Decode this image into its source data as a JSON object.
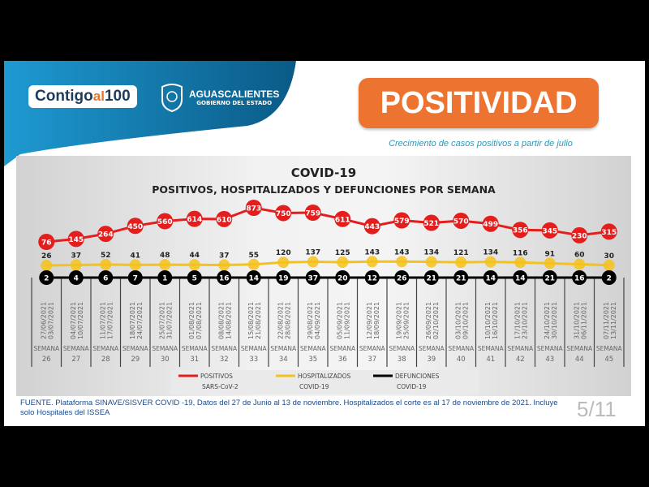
{
  "header": {
    "logo_contigo_main": "Contigo",
    "logo_contigo_al": "al",
    "logo_contigo_num": "100",
    "gov_name": "AGUASCALIENTES",
    "gov_sub": "GOBIERNO DEL ESTADO",
    "badge": "POSITIVIDAD",
    "subtitle": "Crecimiento de casos positivos a partir de julio"
  },
  "colors": {
    "banner": "#1a8cc4",
    "badge": "#ec7430",
    "positivos": "#e41d1d",
    "hospitalizados": "#f4c21c",
    "defunciones": "#000000"
  },
  "chart_data": {
    "type": "line",
    "title": "COVID-19",
    "subtitle": "POSITIVOS, HOSPITALIZADOS Y DEFUNCIONES POR SEMANA",
    "week_prefix": "SEMANA",
    "categories": [
      "26",
      "27",
      "28",
      "29",
      "30",
      "31",
      "32",
      "33",
      "34",
      "35",
      "36",
      "37",
      "38",
      "39",
      "40",
      "41",
      "42",
      "43",
      "44",
      "45"
    ],
    "date_ranges": [
      "27/06/2021 03/07/2021",
      "04/07/2021 10/07/2021",
      "11/07/2021 17/07/2021",
      "18/07/2021 24/07/2021",
      "25/07/2021 31/07/2021",
      "01/08/2021 07/08/2021",
      "08/08/2021 14/08/2021",
      "15/08/2021 21/08/2021",
      "22/08/2021 28/08/2021",
      "29/08/2021 04/09/2021",
      "05/09/2021 11/09/2021",
      "12/09/2021 18/09/2021",
      "19/09/2021 25/09/2021",
      "26/09/2021 02/10/2021",
      "03/10/2021 09/10/2021",
      "10/10/2021 16/10/2021",
      "17/10/2021 23/10/2021",
      "24/10/2021 30/10/2021",
      "31/10/2021 06/11/2021",
      "07/11/2021 13/11/2021"
    ],
    "series": [
      {
        "name": "POSITIVOS SARS-CoV-2",
        "values": [
          76,
          145,
          264,
          450,
          560,
          614,
          610,
          873,
          750,
          759,
          611,
          443,
          579,
          521,
          570,
          499,
          356,
          345,
          230,
          315
        ]
      },
      {
        "name": "HOSPITALIZADOS COVID-19",
        "values": [
          26,
          37,
          52,
          41,
          48,
          44,
          37,
          55,
          120,
          137,
          125,
          143,
          143,
          134,
          121,
          134,
          116,
          91,
          60,
          30
        ]
      },
      {
        "name": "DEFUNCIONES COVID-19",
        "values": [
          2,
          4,
          6,
          7,
          1,
          5,
          16,
          14,
          19,
          37,
          20,
          12,
          26,
          21,
          21,
          14,
          14,
          21,
          16,
          2
        ]
      }
    ],
    "legend": [
      {
        "line1": "POSITIVOS",
        "line2": "SARS-CoV-2"
      },
      {
        "line1": "HOSPITALIZADOS",
        "line2": "COVID-19"
      },
      {
        "line1": "DEFUNCIONES",
        "line2": "COVID-19"
      }
    ],
    "legend_position": "bottom",
    "grid": false
  },
  "footer": {
    "source": "FUENTE. Plataforma SINAVE/SISVER COVID -19, Datos del 27 de Junio al 13 de noviembre.  Hospitalizados el corte es al 17 de noviembre de 2021. Incluye solo Hospitales del ISSEA",
    "page": "5/11"
  }
}
